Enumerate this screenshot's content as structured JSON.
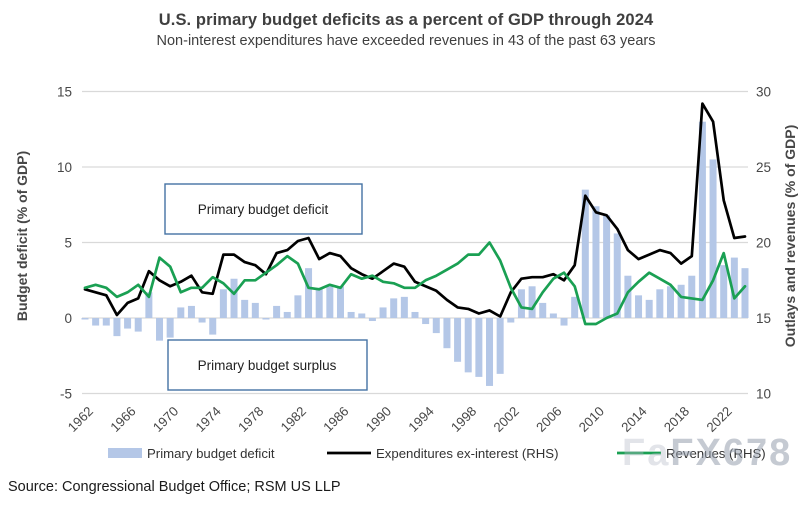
{
  "header": {
    "title": "U.S. primary budget deficits as a percent of GDP through 2024",
    "subtitle": "Non-interest expenditures have exceeded revenues in 43 of the past 63 years"
  },
  "footer": {
    "source": "Source: Congressional Budget Office; RSM US LLP"
  },
  "watermark": {
    "ghost": "Fa",
    "text": "FX678"
  },
  "annotations": {
    "deficit_box": "Primary budget deficit",
    "surplus_box": "Primary budget surplus"
  },
  "colors": {
    "bar": "#b4c7e7",
    "expenditures": "#000000",
    "revenues": "#1aa053",
    "grid": "#d9d9d9",
    "axis_text": "#474747",
    "legend_text": "#333333",
    "annotation_border": "#4472a4",
    "annotation_text": "#1f1f1f"
  },
  "chart_data": {
    "type": "bar+line combo, dual y-axes",
    "title": "U.S. primary budget deficits as a percent of GDP through 2024",
    "subtitle": "Non-interest expenditures have exceeded revenues in 43 of the past 63 years",
    "grid": "horizontal gridlines only",
    "legend_position": "bottom",
    "x": [
      1962,
      1963,
      1964,
      1965,
      1966,
      1967,
      1968,
      1969,
      1970,
      1971,
      1972,
      1973,
      1974,
      1975,
      1976,
      1977,
      1978,
      1979,
      1980,
      1981,
      1982,
      1983,
      1984,
      1985,
      1986,
      1987,
      1988,
      1989,
      1990,
      1991,
      1992,
      1993,
      1994,
      1995,
      1996,
      1997,
      1998,
      1999,
      2000,
      2001,
      2002,
      2003,
      2004,
      2005,
      2006,
      2007,
      2008,
      2009,
      2010,
      2011,
      2012,
      2013,
      2014,
      2015,
      2016,
      2017,
      2018,
      2019,
      2020,
      2021,
      2022,
      2023,
      2024
    ],
    "x_tick_labels": [
      1962,
      1966,
      1970,
      1974,
      1978,
      1982,
      1986,
      1990,
      1994,
      1998,
      2002,
      2006,
      2010,
      2014,
      2018,
      2022
    ],
    "left_axis": {
      "label": "Budget deficit (% of GDP)",
      "min": -5,
      "max": 15,
      "ticks": [
        15,
        10,
        5,
        0,
        -5
      ]
    },
    "right_axis": {
      "label": "Outlays and revenues (% of GDP)",
      "min": 10,
      "max": 30,
      "ticks": [
        30,
        25,
        20,
        15,
        10
      ]
    },
    "series": [
      {
        "name": "Primary budget deficit",
        "type": "bar",
        "axis": "left",
        "color": "#b4c7e7",
        "values": [
          -0.1,
          -0.5,
          -0.5,
          -1.2,
          -0.7,
          -0.9,
          1.7,
          -1.5,
          -1.3,
          0.7,
          0.8,
          -0.3,
          -1.1,
          1.9,
          2.6,
          1.2,
          1.0,
          -0.1,
          0.8,
          0.4,
          1.5,
          3.3,
          2.0,
          2.1,
          2.1,
          0.4,
          0.3,
          -0.2,
          0.7,
          1.3,
          1.4,
          0.4,
          -0.4,
          -1.0,
          -2.0,
          -2.9,
          -3.6,
          -3.9,
          -4.5,
          -3.7,
          -0.3,
          1.9,
          2.1,
          1.0,
          0.3,
          -0.5,
          1.4,
          8.5,
          7.4,
          6.8,
          5.6,
          2.8,
          1.5,
          1.2,
          1.9,
          2.1,
          2.2,
          2.8,
          13.0,
          10.5,
          3.5,
          4.0,
          3.3
        ]
      },
      {
        "name": "Expenditures ex-interest (RHS)",
        "type": "line",
        "axis": "right",
        "color": "#000000",
        "values": [
          16.9,
          16.7,
          16.5,
          15.2,
          16.0,
          16.3,
          18.1,
          17.5,
          17.1,
          17.4,
          17.8,
          16.7,
          16.6,
          19.2,
          19.2,
          18.7,
          18.5,
          17.9,
          19.3,
          19.5,
          20.1,
          20.3,
          18.9,
          19.3,
          19.1,
          18.3,
          17.9,
          17.6,
          18.1,
          18.6,
          18.4,
          17.4,
          17.1,
          16.8,
          16.2,
          15.7,
          15.6,
          15.3,
          15.5,
          15.1,
          16.7,
          17.6,
          17.7,
          17.7,
          17.9,
          17.5,
          18.5,
          23.1,
          22.0,
          21.8,
          20.9,
          19.5,
          18.9,
          19.2,
          19.5,
          19.3,
          18.6,
          19.1,
          29.2,
          28.0,
          22.8,
          20.3,
          20.4
        ]
      },
      {
        "name": "Revenues (RHS)",
        "type": "line",
        "axis": "right",
        "color": "#1aa053",
        "values": [
          17.0,
          17.2,
          17.0,
          16.4,
          16.7,
          17.2,
          16.4,
          19.0,
          18.4,
          16.7,
          17.0,
          17.0,
          17.7,
          17.3,
          16.6,
          17.5,
          17.5,
          18.0,
          18.5,
          19.1,
          18.6,
          17.0,
          16.9,
          17.2,
          17.0,
          17.9,
          17.6,
          17.8,
          17.4,
          17.3,
          17.0,
          17.0,
          17.5,
          17.8,
          18.2,
          18.6,
          19.2,
          19.2,
          20.0,
          18.8,
          17.0,
          15.7,
          15.6,
          16.7,
          17.6,
          18.0,
          17.1,
          14.6,
          14.6,
          15.0,
          15.3,
          16.7,
          17.4,
          18.0,
          17.6,
          17.2,
          16.4,
          16.3,
          16.2,
          17.5,
          19.3,
          16.3,
          17.1
        ]
      }
    ]
  }
}
